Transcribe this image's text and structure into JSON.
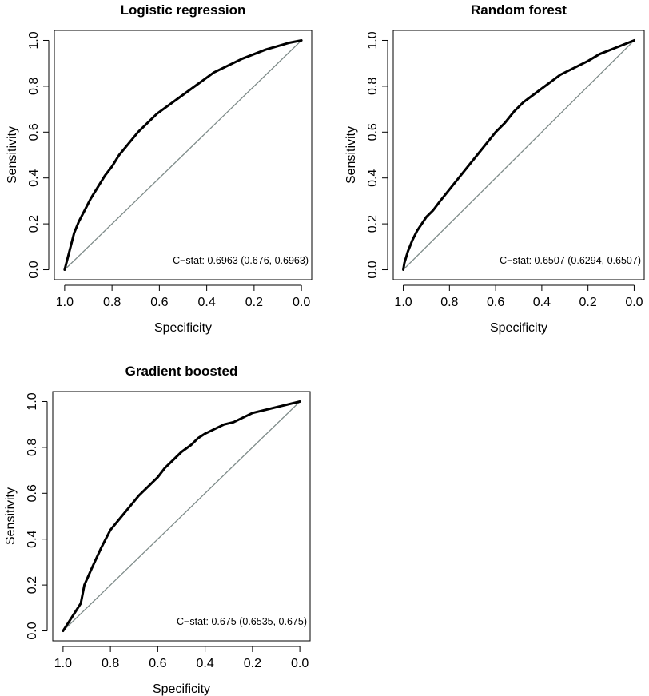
{
  "chart_data": [
    {
      "type": "line",
      "title": "Logistic regression",
      "xlabel": "Specificity",
      "ylabel": "Sensitivity",
      "xlim": [
        1.0,
        0.0
      ],
      "ylim": [
        0.0,
        1.0
      ],
      "x_reversed": true,
      "x_ticks": [
        "1.0",
        "0.8",
        "0.6",
        "0.4",
        "0.2",
        "0.0"
      ],
      "y_ticks": [
        "0.0",
        "0.2",
        "0.4",
        "0.6",
        "0.8",
        "1.0"
      ],
      "annotation": "C−stat: 0.6963 (0.676, 0.6963)",
      "reference_line": "diagonal",
      "series": [
        {
          "x": [
            1.0,
            0.99,
            0.975,
            0.96,
            0.94,
            0.915,
            0.89,
            0.86,
            0.83,
            0.8,
            0.77,
            0.73,
            0.69,
            0.65,
            0.61,
            0.57,
            0.53,
            0.49,
            0.45,
            0.41,
            0.37,
            0.33,
            0.29,
            0.25,
            0.2,
            0.15,
            0.1,
            0.05,
            0.0
          ],
          "y": [
            0.0,
            0.04,
            0.1,
            0.16,
            0.21,
            0.26,
            0.31,
            0.36,
            0.41,
            0.45,
            0.5,
            0.55,
            0.6,
            0.64,
            0.68,
            0.71,
            0.74,
            0.77,
            0.8,
            0.83,
            0.86,
            0.88,
            0.9,
            0.92,
            0.94,
            0.96,
            0.975,
            0.99,
            1.0
          ]
        }
      ]
    },
    {
      "type": "line",
      "title": "Random forest",
      "xlabel": "Specificity",
      "ylabel": "Sensitivity",
      "xlim": [
        1.0,
        0.0
      ],
      "ylim": [
        0.0,
        1.0
      ],
      "x_reversed": true,
      "x_ticks": [
        "1.0",
        "0.8",
        "0.6",
        "0.4",
        "0.2",
        "0.0"
      ],
      "y_ticks": [
        "0.0",
        "0.2",
        "0.4",
        "0.6",
        "0.8",
        "1.0"
      ],
      "annotation": "C−stat: 0.6507 (0.6294, 0.6507)",
      "reference_line": "diagonal",
      "series": [
        {
          "x": [
            1.0,
            0.995,
            0.98,
            0.96,
            0.94,
            0.92,
            0.9,
            0.87,
            0.84,
            0.8,
            0.76,
            0.72,
            0.68,
            0.64,
            0.6,
            0.56,
            0.52,
            0.48,
            0.44,
            0.4,
            0.36,
            0.32,
            0.28,
            0.24,
            0.2,
            0.15,
            0.1,
            0.05,
            0.0
          ],
          "y": [
            0.0,
            0.03,
            0.08,
            0.13,
            0.17,
            0.2,
            0.23,
            0.26,
            0.3,
            0.35,
            0.4,
            0.45,
            0.5,
            0.55,
            0.6,
            0.64,
            0.69,
            0.73,
            0.76,
            0.79,
            0.82,
            0.85,
            0.87,
            0.89,
            0.91,
            0.94,
            0.96,
            0.98,
            1.0
          ]
        }
      ]
    },
    {
      "type": "line",
      "title": "Gradient boosted",
      "xlabel": "Specificity",
      "ylabel": "Sensitivity",
      "xlim": [
        1.0,
        0.0
      ],
      "ylim": [
        0.0,
        1.0
      ],
      "x_reversed": true,
      "x_ticks": [
        "1.0",
        "0.8",
        "0.6",
        "0.4",
        "0.2",
        "0.0"
      ],
      "y_ticks": [
        "0.0",
        "0.2",
        "0.4",
        "0.6",
        "0.8",
        "1.0"
      ],
      "annotation": "C−stat: 0.675 (0.6535, 0.675)",
      "reference_line": "diagonal",
      "series": [
        {
          "x": [
            1.0,
            0.975,
            0.95,
            0.925,
            0.91,
            0.88,
            0.84,
            0.8,
            0.76,
            0.72,
            0.68,
            0.64,
            0.6,
            0.57,
            0.54,
            0.5,
            0.46,
            0.43,
            0.4,
            0.36,
            0.32,
            0.28,
            0.24,
            0.2,
            0.16,
            0.12,
            0.08,
            0.04,
            0.0
          ],
          "y": [
            0.0,
            0.04,
            0.08,
            0.12,
            0.2,
            0.27,
            0.36,
            0.44,
            0.49,
            0.54,
            0.59,
            0.63,
            0.67,
            0.71,
            0.74,
            0.78,
            0.81,
            0.84,
            0.86,
            0.88,
            0.9,
            0.91,
            0.93,
            0.95,
            0.96,
            0.97,
            0.98,
            0.99,
            1.0
          ]
        }
      ]
    }
  ]
}
